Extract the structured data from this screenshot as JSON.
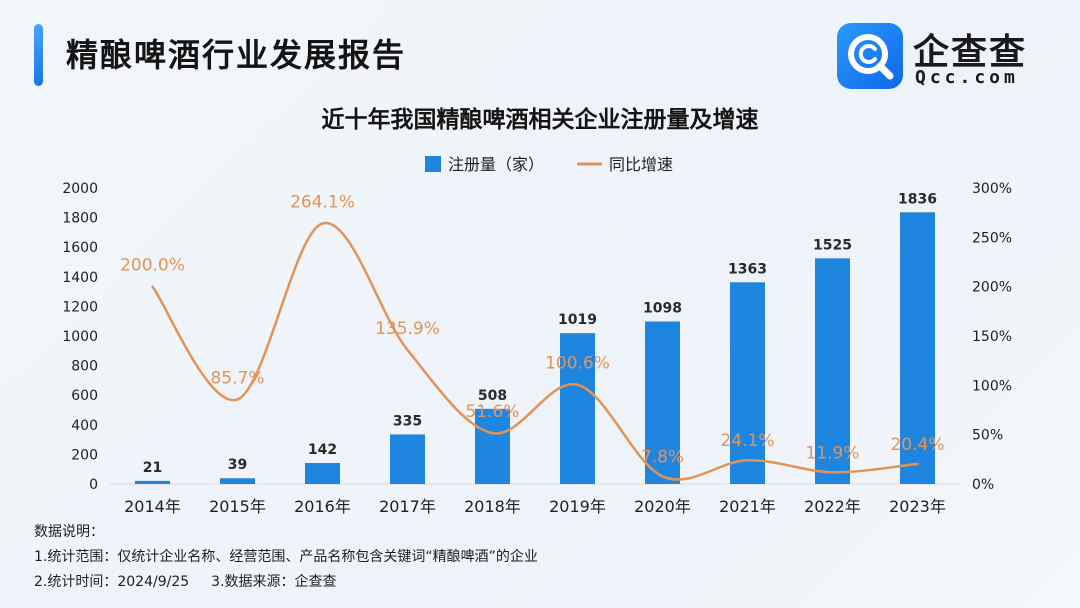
{
  "header": {
    "title": "精酿啤酒行业发展报告"
  },
  "logo": {
    "name": "企查查",
    "domain": "Qcc.com"
  },
  "colors": {
    "bar": "#1f86e0",
    "line": "#e49356",
    "accent": "#1677e8"
  },
  "chart_data": {
    "type": "bar",
    "title": "近十年我国精酿啤酒相关企业注册量及增速",
    "categories": [
      "2014年",
      "2015年",
      "2016年",
      "2017年",
      "2018年",
      "2019年",
      "2020年",
      "2021年",
      "2022年",
      "2023年"
    ],
    "series": [
      {
        "name": "注册量（家）",
        "type": "bar",
        "axis": "left",
        "values": [
          21,
          39,
          142,
          335,
          508,
          1019,
          1098,
          1363,
          1525,
          1836
        ],
        "labels": [
          "21",
          "39",
          "142",
          "335",
          "508",
          "1019",
          "1098",
          "1363",
          "1525",
          "1836"
        ]
      },
      {
        "name": "同比增速",
        "type": "line",
        "axis": "right",
        "values": [
          200.0,
          85.7,
          264.1,
          135.9,
          51.6,
          100.6,
          7.8,
          24.1,
          11.9,
          20.4
        ],
        "labels": [
          "200.0%",
          "85.7%",
          "264.1%",
          "135.9%",
          "51.6%",
          "100.6%",
          "7.8%",
          "24.1%",
          "11.9%",
          "20.4%"
        ]
      }
    ],
    "y_left": {
      "min": 0,
      "max": 2000,
      "ticks": [
        "0",
        "200",
        "400",
        "600",
        "800",
        "1000",
        "1200",
        "1400",
        "1600",
        "1800",
        "2000"
      ]
    },
    "y_right": {
      "min": 0,
      "max": 300,
      "ticks": [
        "0%",
        "50%",
        "100%",
        "150%",
        "200%",
        "250%",
        "300%"
      ]
    },
    "legend": {
      "position": "top-center"
    },
    "grid": false
  },
  "notes": {
    "heading": "数据说明：",
    "line1": "1.统计范围：仅统计企业名称、经营范围、产品名称包含关键词“精酿啤酒”的企业",
    "line2a": "2.统计时间：2024/9/25",
    "line2b": "3.数据来源：企查查"
  }
}
